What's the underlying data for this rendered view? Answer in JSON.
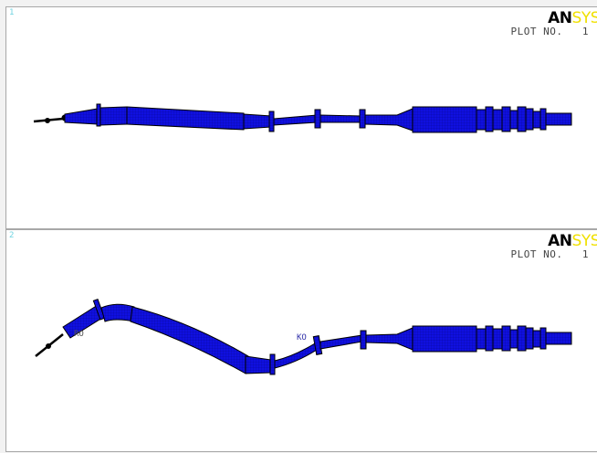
{
  "windows": [
    {
      "number": "1",
      "logo_an": "AN",
      "logo_sys": "SYS",
      "plot_label": "PLOT NO.",
      "plot_number": "1",
      "labels": []
    },
    {
      "number": "2",
      "logo_an": "AN",
      "logo_sys": "SYS",
      "plot_label": "PLOT NO.",
      "plot_number": "1",
      "labels": [
        "RO",
        "KO"
      ]
    }
  ],
  "colors": {
    "mesh_fill": "#1010e0",
    "mesh_outline": "#000000",
    "background": "#ffffff",
    "window_number": "#6fd3e0",
    "logo_sys": "#f0e000"
  }
}
